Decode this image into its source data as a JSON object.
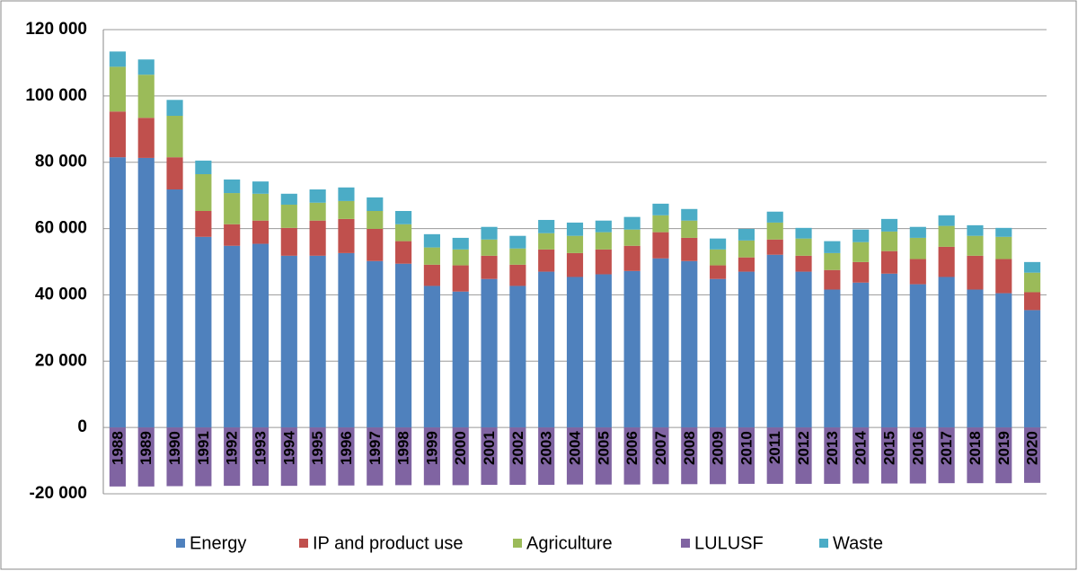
{
  "chart_data": {
    "type": "stacked_bar",
    "categories": [
      "1988",
      "1989",
      "1990",
      "1991",
      "1992",
      "1993",
      "1994",
      "1995",
      "1996",
      "1997",
      "1998",
      "1999",
      "2000",
      "2001",
      "2002",
      "2003",
      "2004",
      "2005",
      "2006",
      "2007",
      "2008",
      "2009",
      "2010",
      "2011",
      "2012",
      "2013",
      "2014",
      "2015",
      "2016",
      "2017",
      "2018",
      "2019",
      "2020"
    ],
    "series": [
      {
        "name": "Energy",
        "color": "#4f81bd",
        "values": [
          81500,
          81300,
          71800,
          57500,
          54800,
          55400,
          51800,
          51800,
          52600,
          50200,
          49400,
          42700,
          41000,
          44800,
          42700,
          47000,
          45400,
          46200,
          47200,
          51000,
          50200,
          44800,
          47000,
          52100,
          47000,
          41600,
          43700,
          46400,
          43200,
          45400,
          41600,
          40500,
          35400
        ]
      },
      {
        "name": "IP and product use",
        "color": "#c0504d",
        "values": [
          13800,
          12100,
          9700,
          7800,
          6500,
          7000,
          8400,
          10600,
          10300,
          9700,
          6800,
          6400,
          7900,
          7000,
          6400,
          6700,
          7200,
          7500,
          7600,
          7900,
          7000,
          4100,
          4300,
          4600,
          4800,
          5900,
          6200,
          6800,
          7600,
          9100,
          10200,
          10300,
          5400
        ]
      },
      {
        "name": "Agriculture",
        "color": "#9bbb59",
        "values": [
          13500,
          13000,
          12500,
          11100,
          9400,
          8100,
          7000,
          5400,
          5400,
          5400,
          5100,
          5200,
          4800,
          4900,
          4900,
          4900,
          5200,
          5200,
          4900,
          5100,
          5200,
          4800,
          5100,
          5100,
          5200,
          5100,
          6000,
          5900,
          6400,
          6300,
          6000,
          6700,
          5900
        ]
      },
      {
        "name": "LULUSF",
        "color": "#8064a2",
        "values": [
          -17800,
          -17800,
          -17700,
          -17700,
          -17600,
          -17600,
          -17600,
          -17500,
          -17500,
          -17500,
          -17400,
          -17400,
          -17400,
          -17300,
          -17300,
          -17300,
          -17200,
          -17200,
          -17200,
          -17100,
          -17100,
          -17100,
          -17000,
          -17000,
          -17000,
          -17000,
          -16900,
          -16900,
          -16900,
          -16800,
          -16800,
          -16800,
          -16700
        ]
      },
      {
        "name": "Waste",
        "color": "#4bacc6",
        "values": [
          4600,
          4600,
          4800,
          4100,
          4100,
          3700,
          3300,
          4000,
          4100,
          4100,
          4000,
          4000,
          3500,
          3800,
          3800,
          4000,
          4000,
          3500,
          3800,
          3500,
          3500,
          3300,
          3500,
          3300,
          3200,
          3600,
          3800,
          3800,
          3300,
          3200,
          3200,
          2700,
          3200
        ]
      }
    ],
    "ylim": [
      -20000,
      120000
    ],
    "yticks": [
      {
        "value": -20000,
        "label": "-20 000"
      },
      0,
      {
        "value": 20000,
        "label": "20 000"
      },
      {
        "value": 40000,
        "label": "40 000"
      },
      {
        "value": 60000,
        "label": "60 000"
      },
      {
        "value": 80000,
        "label": "80 000"
      },
      {
        "value": 100000,
        "label": "100 000"
      },
      {
        "value": 120000,
        "label": "120 000"
      }
    ],
    "grid": true,
    "legend": "bottom"
  }
}
